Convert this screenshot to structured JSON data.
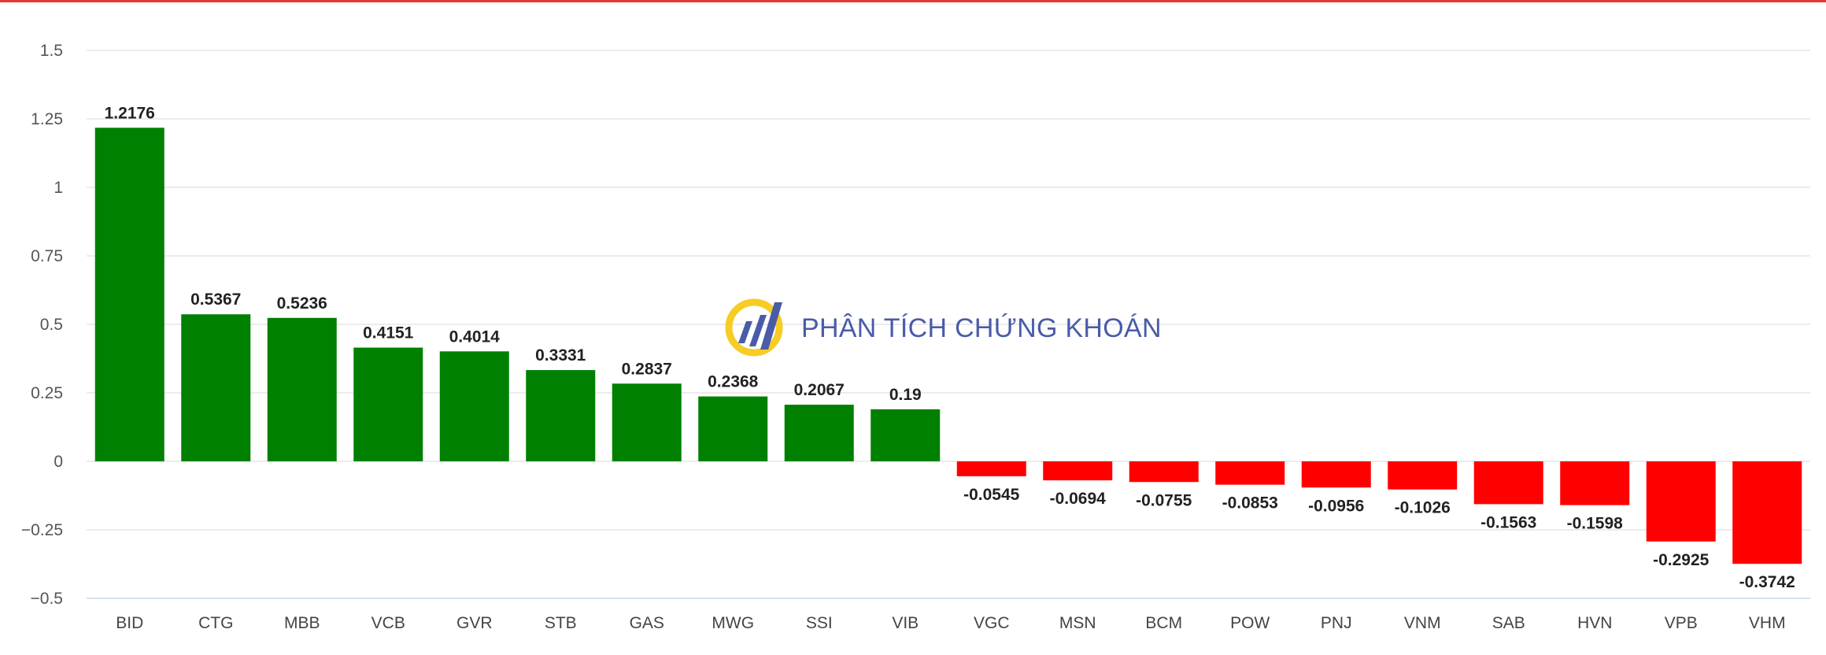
{
  "colors": {
    "top_border": "#e53935",
    "positive": "#008000",
    "negative": "#ff0000",
    "grid": "#e6e6e6",
    "axis_line": "#ccd6eb",
    "brand_blue": "#2b3f9a",
    "brand_yellow": "#f5c400"
  },
  "watermark": {
    "text": "PHÂN TÍCH CHỨNG KHOÁN",
    "icon": "stock-analysis-logo-icon"
  },
  "chart_data": {
    "type": "bar",
    "title": "",
    "xlabel": "",
    "ylabel": "",
    "ylim": [
      -0.5,
      1.5
    ],
    "yticks": [
      1.5,
      1.25,
      1,
      0.75,
      0.5,
      0.25,
      0,
      -0.25,
      -0.5
    ],
    "ytick_labels": [
      "1.5",
      "1.25",
      "1",
      "0.75",
      "0.5",
      "0.25",
      "0",
      "−0.25",
      "−0.5"
    ],
    "grid": true,
    "categories": [
      "BID",
      "CTG",
      "MBB",
      "VCB",
      "GVR",
      "STB",
      "GAS",
      "MWG",
      "SSI",
      "VIB",
      "VGC",
      "MSN",
      "BCM",
      "POW",
      "PNJ",
      "VNM",
      "SAB",
      "HVN",
      "VPB",
      "VHM"
    ],
    "values": [
      1.2176,
      0.5367,
      0.5236,
      0.4151,
      0.4014,
      0.3331,
      0.2837,
      0.2368,
      0.2067,
      0.19,
      -0.0545,
      -0.0694,
      -0.0755,
      -0.0853,
      -0.0956,
      -0.1026,
      -0.1563,
      -0.1598,
      -0.2925,
      -0.3742
    ],
    "value_labels": [
      "1.2176",
      "0.5367",
      "0.5236",
      "0.4151",
      "0.4014",
      "0.3331",
      "0.2837",
      "0.2368",
      "0.2067",
      "0.19",
      "-0.0545",
      "-0.0694",
      "-0.0755",
      "-0.0853",
      "-0.0956",
      "-0.1026",
      "-0.1563",
      "-0.1598",
      "-0.2925",
      "-0.3742"
    ]
  }
}
